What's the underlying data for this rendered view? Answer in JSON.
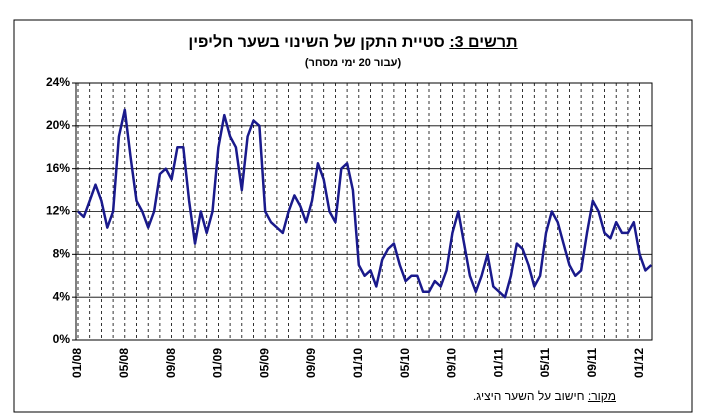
{
  "chart_data": {
    "type": "line",
    "title_label": "תרשים 3:",
    "title": "סטיית התקן של השינוי בשער חליפין",
    "subtitle": "(עבור 20 ימי מסחר)",
    "source_label": "מקור:",
    "source": "חישוב על השער היציג.",
    "categories": [
      "01/08",
      null,
      null,
      null,
      null,
      null,
      null,
      null,
      "05/08",
      null,
      null,
      null,
      null,
      null,
      null,
      null,
      "09/08",
      null,
      null,
      null,
      null,
      null,
      null,
      null,
      "01/09",
      null,
      null,
      null,
      null,
      null,
      null,
      null,
      "05/09",
      null,
      null,
      null,
      null,
      null,
      null,
      null,
      "09/09",
      null,
      null,
      null,
      null,
      null,
      null,
      null,
      "01/10",
      null,
      null,
      null,
      null,
      null,
      null,
      null,
      "05/10",
      null,
      null,
      null,
      null,
      null,
      null,
      null,
      "09/10",
      null,
      null,
      null,
      null,
      null,
      null,
      null,
      "01/11",
      null,
      null,
      null,
      null,
      null,
      null,
      null,
      "05/11",
      null,
      null,
      null,
      null,
      null,
      null,
      null,
      "09/11",
      null,
      null,
      null,
      null,
      null,
      null,
      null,
      "01/12",
      null,
      null
    ],
    "series": [
      {
        "color": "#1a1a8c",
        "values": [
          12,
          11.5,
          13,
          14.5,
          13,
          10.5,
          12,
          19,
          21.5,
          17,
          13,
          12,
          10.5,
          12,
          15.5,
          16,
          15,
          18,
          18,
          13,
          9,
          12,
          10,
          12,
          18,
          21,
          19,
          18,
          14,
          19,
          20.5,
          20,
          12,
          11,
          10.5,
          10,
          12,
          13.5,
          12.5,
          11,
          13,
          16.5,
          15,
          12,
          11,
          16,
          16.5,
          14,
          7,
          6,
          6.5,
          5,
          7.5,
          8.5,
          9,
          7,
          5.5,
          6,
          6,
          4.5,
          4.5,
          5.5,
          5,
          6.5,
          10,
          12,
          9,
          6,
          4.5,
          6,
          8,
          5,
          4.5,
          4,
          6,
          9,
          8.5,
          7,
          5,
          6,
          10,
          12,
          11,
          9,
          7,
          6,
          6.5,
          10,
          13,
          12,
          10,
          9.5,
          11,
          10,
          10,
          11,
          8,
          6.5,
          7
        ]
      }
    ],
    "ylim": [
      0,
      24
    ],
    "yticks": [
      {
        "value": 0,
        "label": "0%"
      },
      {
        "value": 4,
        "label": "4%"
      },
      {
        "value": 8,
        "label": "8%"
      },
      {
        "value": 12,
        "label": "12%"
      },
      {
        "value": 16,
        "label": "16%"
      },
      {
        "value": 20,
        "label": "20%"
      },
      {
        "value": 24,
        "label": "24%"
      }
    ],
    "grid": true
  }
}
